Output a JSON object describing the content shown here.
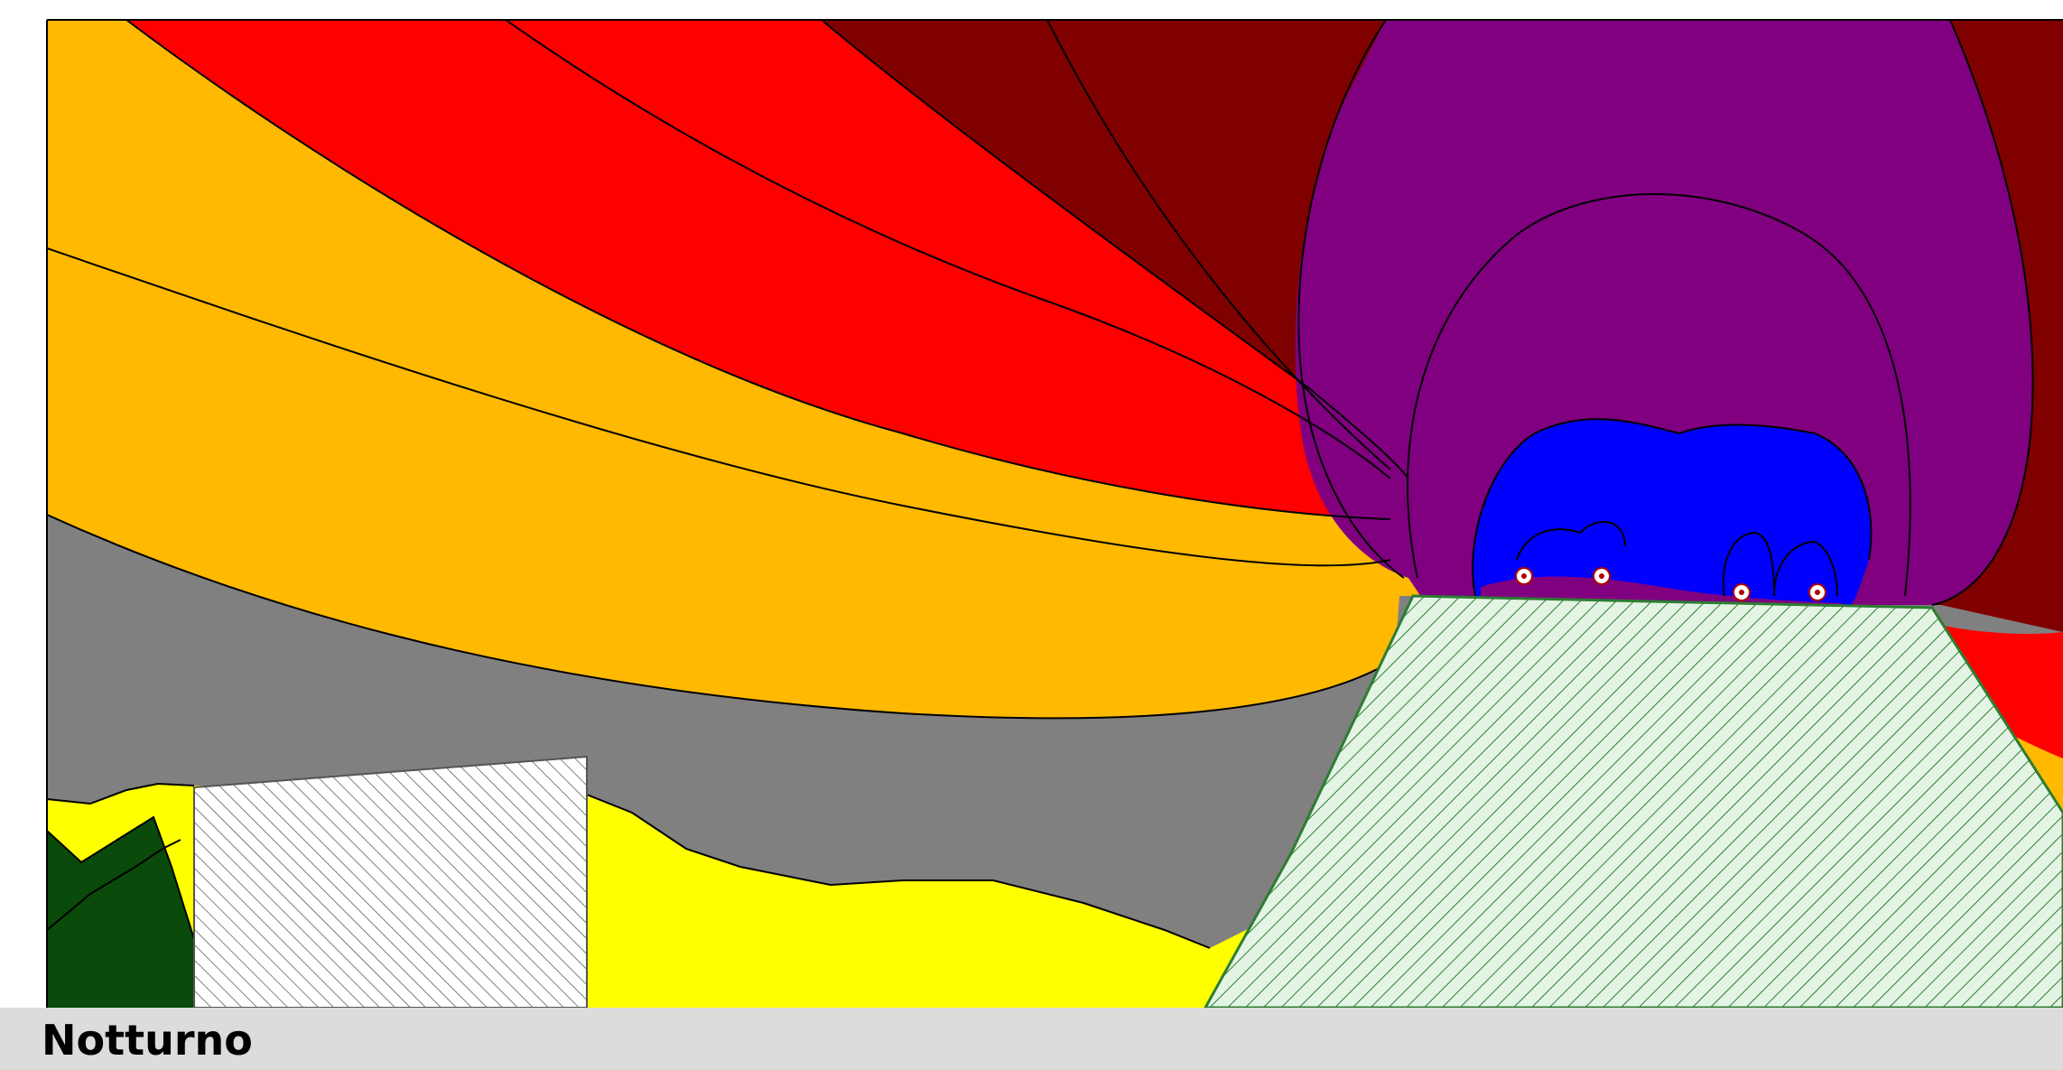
{
  "caption": {
    "label": "Notturno"
  },
  "colors": {
    "background": "#ffffff",
    "caption_bar": "#dcdcdc",
    "contour_line": "#000000",
    "band_dark_green": "#0a4a0a",
    "band_yellow": "#ffff00",
    "band_gray": "#808080",
    "band_orange": "#ffb900",
    "band_red": "#ff0000",
    "band_dark_red": "#800000",
    "band_purple": "#800080",
    "band_blue": "#0000ff",
    "embankment_fill": "#e4f4e4",
    "embankment_hatch": "#2e7d32",
    "building_fill": "#ffffff",
    "building_hatch": "#555555",
    "source_marker": "#ffffff",
    "source_marker_dot": "#b00000"
  },
  "map": {
    "type": "noise-contour-cross-section",
    "bands_far_to_near": [
      "band_dark_green",
      "band_yellow",
      "band_gray",
      "band_orange",
      "band_red",
      "band_dark_red",
      "band_purple",
      "band_blue"
    ],
    "source_count": 4,
    "obstacles": [
      "building",
      "embankment"
    ]
  }
}
